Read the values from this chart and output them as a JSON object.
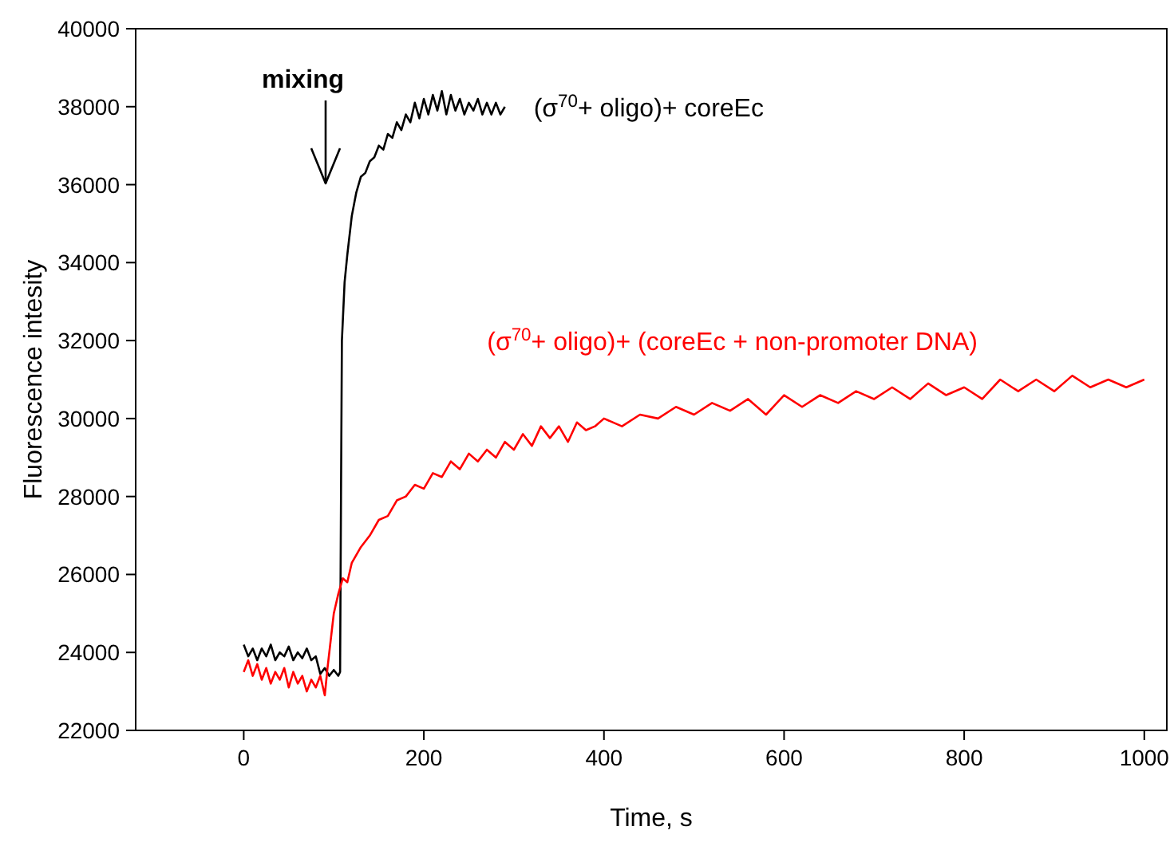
{
  "chart_data": {
    "type": "line",
    "xlabel": "Time, s",
    "ylabel": "Fluorescence intesity",
    "xlim": [
      -120,
      1025
    ],
    "ylim": [
      22000,
      40000
    ],
    "xticks": [
      0,
      200,
      400,
      600,
      800,
      1000
    ],
    "yticks": [
      22000,
      24000,
      26000,
      28000,
      30000,
      32000,
      34000,
      36000,
      38000,
      40000
    ],
    "grid": false,
    "line_style": "solid",
    "marker": "none",
    "annotations": [
      "mixing"
    ],
    "series": [
      {
        "name": "(σ$^{70}$+ oligo)+ coreEc",
        "color": "#000000",
        "x": [
          0,
          5,
          10,
          15,
          20,
          25,
          30,
          35,
          40,
          45,
          50,
          55,
          60,
          65,
          70,
          75,
          80,
          85,
          90,
          95,
          100,
          105,
          107,
          108,
          109,
          112,
          115,
          120,
          125,
          130,
          135,
          140,
          145,
          150,
          155,
          160,
          165,
          170,
          175,
          180,
          185,
          190,
          195,
          200,
          205,
          210,
          215,
          220,
          225,
          230,
          235,
          240,
          245,
          250,
          255,
          260,
          265,
          270,
          275,
          280,
          285,
          290
        ],
        "values": [
          24200,
          23900,
          24100,
          23800,
          24100,
          23900,
          24200,
          23800,
          24000,
          23900,
          24150,
          23800,
          24000,
          23850,
          24100,
          23800,
          23900,
          23450,
          23600,
          23400,
          23550,
          23400,
          23500,
          28000,
          32000,
          33500,
          34200,
          35200,
          35800,
          36200,
          36300,
          36600,
          36700,
          37000,
          36900,
          37300,
          37200,
          37600,
          37400,
          37800,
          37600,
          38100,
          37700,
          38200,
          37800,
          38300,
          37900,
          38400,
          37800,
          38300,
          37900,
          38200,
          37800,
          38100,
          37900,
          38200,
          37800,
          38100,
          37800,
          38100,
          37800,
          38000
        ]
      },
      {
        "name": "(σ$^{70}$+ oligo)+ (coreEc + non-promoter DNA)",
        "color": "#ff0000",
        "x": [
          0,
          5,
          10,
          15,
          20,
          25,
          30,
          35,
          40,
          45,
          50,
          55,
          60,
          65,
          70,
          75,
          80,
          85,
          90,
          93,
          97,
          100,
          105,
          110,
          115,
          120,
          130,
          140,
          150,
          160,
          170,
          180,
          190,
          200,
          210,
          220,
          230,
          240,
          250,
          260,
          270,
          280,
          290,
          300,
          310,
          320,
          330,
          340,
          350,
          360,
          370,
          380,
          390,
          400,
          420,
          440,
          460,
          480,
          500,
          520,
          540,
          560,
          580,
          600,
          620,
          640,
          660,
          680,
          700,
          720,
          740,
          760,
          780,
          800,
          820,
          840,
          860,
          880,
          900,
          920,
          940,
          960,
          980,
          1000
        ],
        "values": [
          23500,
          23800,
          23400,
          23700,
          23300,
          23600,
          23200,
          23500,
          23300,
          23600,
          23100,
          23500,
          23200,
          23400,
          23000,
          23300,
          23100,
          23400,
          22900,
          23600,
          24400,
          25000,
          25500,
          25900,
          25800,
          26300,
          26700,
          27000,
          27400,
          27500,
          27900,
          28000,
          28300,
          28200,
          28600,
          28500,
          28900,
          28700,
          29100,
          28900,
          29200,
          29000,
          29400,
          29200,
          29600,
          29300,
          29800,
          29500,
          29800,
          29400,
          29900,
          29700,
          29800,
          30000,
          29800,
          30100,
          30000,
          30300,
          30100,
          30400,
          30200,
          30500,
          30100,
          30600,
          30300,
          30600,
          30400,
          30700,
          30500,
          30800,
          30500,
          30900,
          30600,
          30800,
          30500,
          31000,
          30700,
          31000,
          30700,
          31100,
          30800,
          31000,
          30800,
          31000
        ]
      }
    ]
  }
}
